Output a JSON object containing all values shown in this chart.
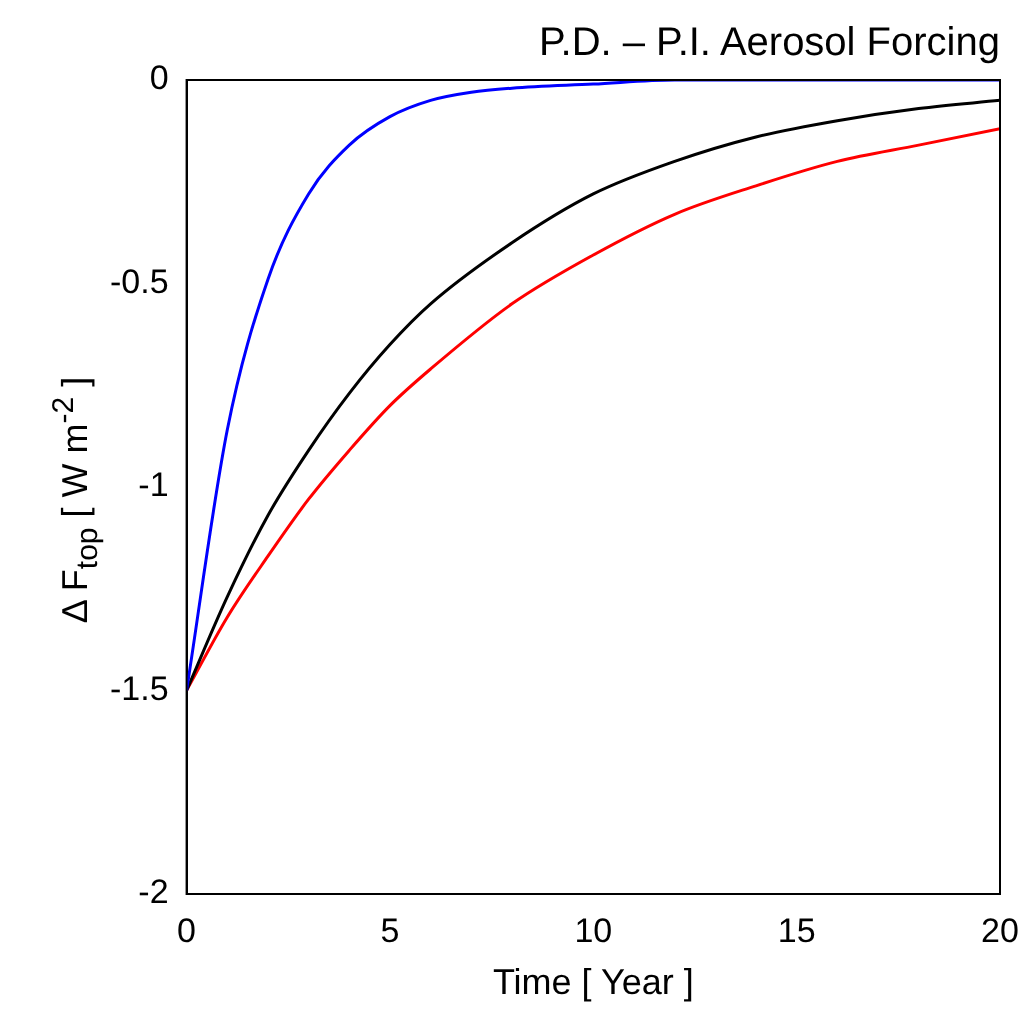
{
  "chart_data": {
    "type": "line",
    "title": "P.D. – P.I. Aerosol Forcing",
    "xlabel": "Time [ Year ]",
    "ylabel": "Δ F$_{top}$  [ W m$^{-2}$ ]",
    "xlim": [
      0,
      20
    ],
    "xticks": [
      0,
      5,
      10,
      15,
      20
    ],
    "ylim": [
      -2,
      0
    ],
    "yticks": [
      -2,
      -1.5,
      -1,
      -0.5,
      0
    ],
    "grid": false,
    "legend": false,
    "marker": "none",
    "line_style": "solid",
    "series": [
      {
        "color": "#0000ff",
        "x": [
          0,
          1,
          2,
          3,
          4,
          5,
          6,
          7,
          8,
          10,
          12,
          15,
          20
        ],
        "values": [
          -1.5,
          -0.86,
          -0.49,
          -0.28,
          -0.16,
          -0.09,
          -0.05,
          -0.03,
          -0.02,
          -0.01,
          0,
          0,
          0
        ]
      },
      {
        "color": "#000000",
        "x": [
          0,
          1,
          2,
          3,
          4,
          5,
          6,
          8,
          10,
          12,
          14,
          16,
          18,
          20
        ],
        "values": [
          -1.5,
          -1.27,
          -1.07,
          -0.91,
          -0.77,
          -0.65,
          -0.55,
          -0.4,
          -0.28,
          -0.2,
          -0.14,
          -0.1,
          -0.07,
          -0.05
        ]
      },
      {
        "color": "#ff0000",
        "x": [
          0,
          1,
          2,
          3,
          4,
          5,
          6,
          8,
          10,
          12,
          14,
          16,
          18,
          20
        ],
        "values": [
          -1.5,
          -1.32,
          -1.17,
          -1.03,
          -0.91,
          -0.8,
          -0.71,
          -0.55,
          -0.43,
          -0.33,
          -0.26,
          -0.2,
          -0.16,
          -0.12
        ]
      }
    ]
  }
}
